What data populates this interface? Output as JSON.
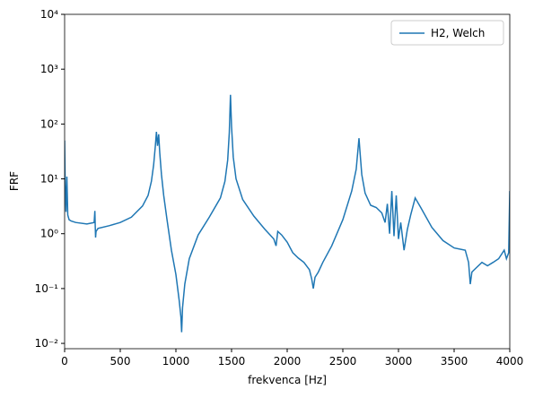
{
  "chart_data": {
    "type": "line",
    "xlabel": "frekvenca [Hz]",
    "ylabel": "FRF",
    "xlim": [
      0,
      4000
    ],
    "xticks": [
      0,
      500,
      1000,
      1500,
      2000,
      2500,
      3000,
      3500,
      4000
    ],
    "ylim": [
      0.008,
      10000
    ],
    "log_y": true,
    "yticks": [
      {
        "value": 0.01,
        "label": "10⁻²"
      },
      {
        "value": 0.1,
        "label": "10⁻¹"
      },
      {
        "value": 1,
        "label": "10⁰"
      },
      {
        "value": 10,
        "label": "10¹"
      },
      {
        "value": 100,
        "label": "10²"
      },
      {
        "value": 1000,
        "label": "10³"
      },
      {
        "value": 10000,
        "label": "10⁴"
      }
    ],
    "legend": "upper right",
    "grid": false,
    "x": [
      0,
      5,
      12,
      20,
      28,
      40,
      60,
      100,
      200,
      265,
      272,
      275,
      278,
      282,
      300,
      400,
      500,
      600,
      700,
      750,
      780,
      800,
      815,
      825,
      835,
      845,
      855,
      870,
      890,
      920,
      960,
      1000,
      1030,
      1045,
      1052,
      1060,
      1080,
      1120,
      1200,
      1300,
      1400,
      1440,
      1465,
      1480,
      1490,
      1500,
      1515,
      1540,
      1600,
      1700,
      1800,
      1880,
      1900,
      1915,
      1950,
      2000,
      2050,
      2100,
      2150,
      2200,
      2220,
      2235,
      2250,
      2280,
      2320,
      2400,
      2500,
      2580,
      2620,
      2645,
      2655,
      2670,
      2700,
      2750,
      2800,
      2850,
      2880,
      2900,
      2920,
      2940,
      2960,
      2980,
      3000,
      3020,
      3050,
      3080,
      3110,
      3150,
      3200,
      3300,
      3400,
      3500,
      3600,
      3630,
      3645,
      3660,
      3700,
      3750,
      3800,
      3850,
      3900,
      3950,
      3970,
      3990,
      4000
    ],
    "series": [
      {
        "name": "H2, Welch",
        "color": "#1f77b4",
        "values": [
          50,
          8,
          2.5,
          11,
          2.2,
          1.8,
          1.7,
          1.6,
          1.5,
          1.6,
          2.6,
          1.4,
          0.85,
          1.1,
          1.25,
          1.4,
          1.6,
          2.0,
          3.2,
          5,
          9,
          18,
          40,
          72,
          40,
          65,
          30,
          12,
          5,
          1.8,
          0.5,
          0.18,
          0.06,
          0.03,
          0.016,
          0.045,
          0.12,
          0.35,
          0.95,
          2.0,
          4.5,
          9,
          22,
          70,
          340,
          90,
          25,
          10,
          4.2,
          2.1,
          1.2,
          0.8,
          0.6,
          1.1,
          0.95,
          0.7,
          0.45,
          0.36,
          0.3,
          0.22,
          0.15,
          0.1,
          0.16,
          0.2,
          0.3,
          0.6,
          1.8,
          6,
          15,
          55,
          30,
          12,
          5.5,
          3.3,
          3.0,
          2.4,
          1.6,
          3.5,
          1.0,
          6,
          0.9,
          5,
          0.8,
          1.6,
          0.5,
          1.2,
          2.2,
          4.5,
          3.0,
          1.3,
          0.75,
          0.55,
          0.5,
          0.3,
          0.12,
          0.2,
          0.24,
          0.3,
          0.26,
          0.3,
          0.35,
          0.5,
          0.35,
          0.45,
          6
        ]
      }
    ]
  }
}
